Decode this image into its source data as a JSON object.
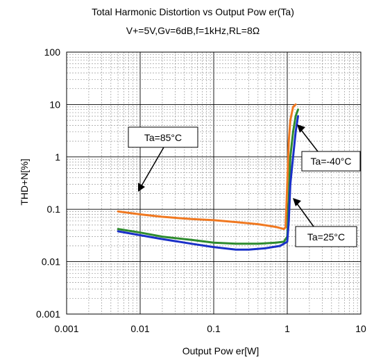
{
  "chart_data": {
    "type": "line",
    "title": "Total Harmonic Distortion vs Output Pow er(Ta)",
    "subtitle": "V+=5V,Gv=6dB,f=1kHz,RL=8Ω",
    "xlabel": "Output Pow er[W]",
    "ylabel": "THD+N[%]",
    "x_scale": "log",
    "y_scale": "log",
    "xlim": [
      0.001,
      10
    ],
    "ylim": [
      0.001,
      100
    ],
    "grid": true,
    "x_tick_labels": [
      "0.001",
      "0.01",
      "0.1",
      "1",
      "10"
    ],
    "y_tick_labels": [
      "100",
      "10",
      "1",
      "0.1",
      "0.01",
      "0.001"
    ],
    "series": [
      {
        "name": "Ta=85°C",
        "color": "#f07820",
        "x": [
          0.005,
          0.01,
          0.02,
          0.05,
          0.1,
          0.2,
          0.4,
          0.7,
          0.9,
          0.95,
          1.0,
          1.05,
          1.1,
          1.2,
          1.3
        ],
        "y": [
          0.091,
          0.08,
          0.072,
          0.065,
          0.062,
          0.057,
          0.052,
          0.046,
          0.042,
          0.045,
          0.3,
          2.0,
          5.0,
          9.0,
          10.0
        ]
      },
      {
        "name": "Ta=-40°C",
        "color": "#2e8b2e",
        "x": [
          0.005,
          0.01,
          0.02,
          0.05,
          0.1,
          0.2,
          0.4,
          0.7,
          0.9,
          1.0,
          1.05,
          1.1,
          1.2,
          1.3,
          1.4
        ],
        "y": [
          0.042,
          0.036,
          0.03,
          0.026,
          0.023,
          0.022,
          0.022,
          0.023,
          0.024,
          0.03,
          0.15,
          1.0,
          3.0,
          6.0,
          8.0
        ]
      },
      {
        "name": "Ta=25°C",
        "color": "#1a30c8",
        "x": [
          0.005,
          0.01,
          0.02,
          0.05,
          0.1,
          0.2,
          0.3,
          0.5,
          0.8,
          1.0,
          1.05,
          1.1,
          1.2,
          1.3,
          1.4
        ],
        "y": [
          0.038,
          0.032,
          0.027,
          0.022,
          0.019,
          0.017,
          0.017,
          0.018,
          0.02,
          0.024,
          0.06,
          0.3,
          1.0,
          3.0,
          6.0
        ]
      }
    ],
    "annotations": [
      {
        "text": "Ta=85°C",
        "series": 0
      },
      {
        "text": "Ta=-40°C",
        "series": 1
      },
      {
        "text": "Ta=25°C",
        "series": 2
      }
    ]
  }
}
